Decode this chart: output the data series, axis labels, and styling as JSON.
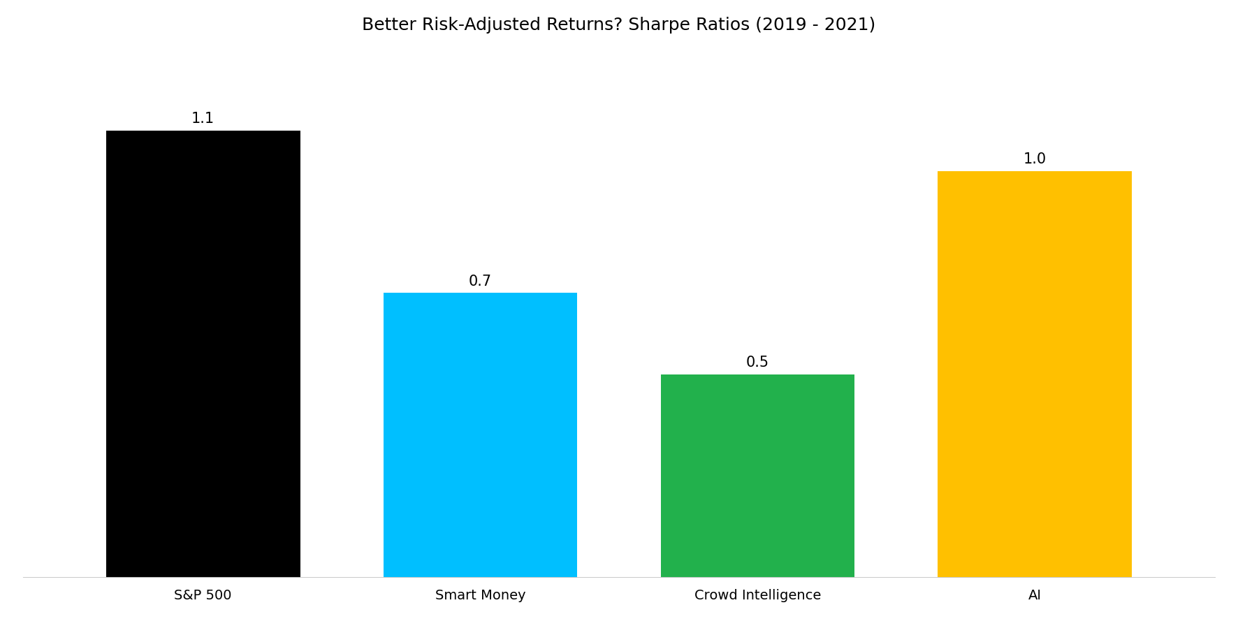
{
  "title": "Better Risk-Adjusted Returns? Sharpe Ratios (2019 - 2021)",
  "categories": [
    "S&P 500",
    "Smart Money",
    "Crowd Intelligence",
    "AI"
  ],
  "values": [
    1.1,
    0.7,
    0.5,
    1.0
  ],
  "bar_colors": [
    "#000000",
    "#00BFFF",
    "#22B14C",
    "#FFC000"
  ],
  "bar_labels": [
    "1.1",
    "0.7",
    "0.5",
    "1.0"
  ],
  "background_color": "#FFFFFF",
  "title_fontsize": 18,
  "label_fontsize": 15,
  "tick_fontsize": 14,
  "ylim": [
    0,
    1.3
  ],
  "bar_width": 0.7
}
